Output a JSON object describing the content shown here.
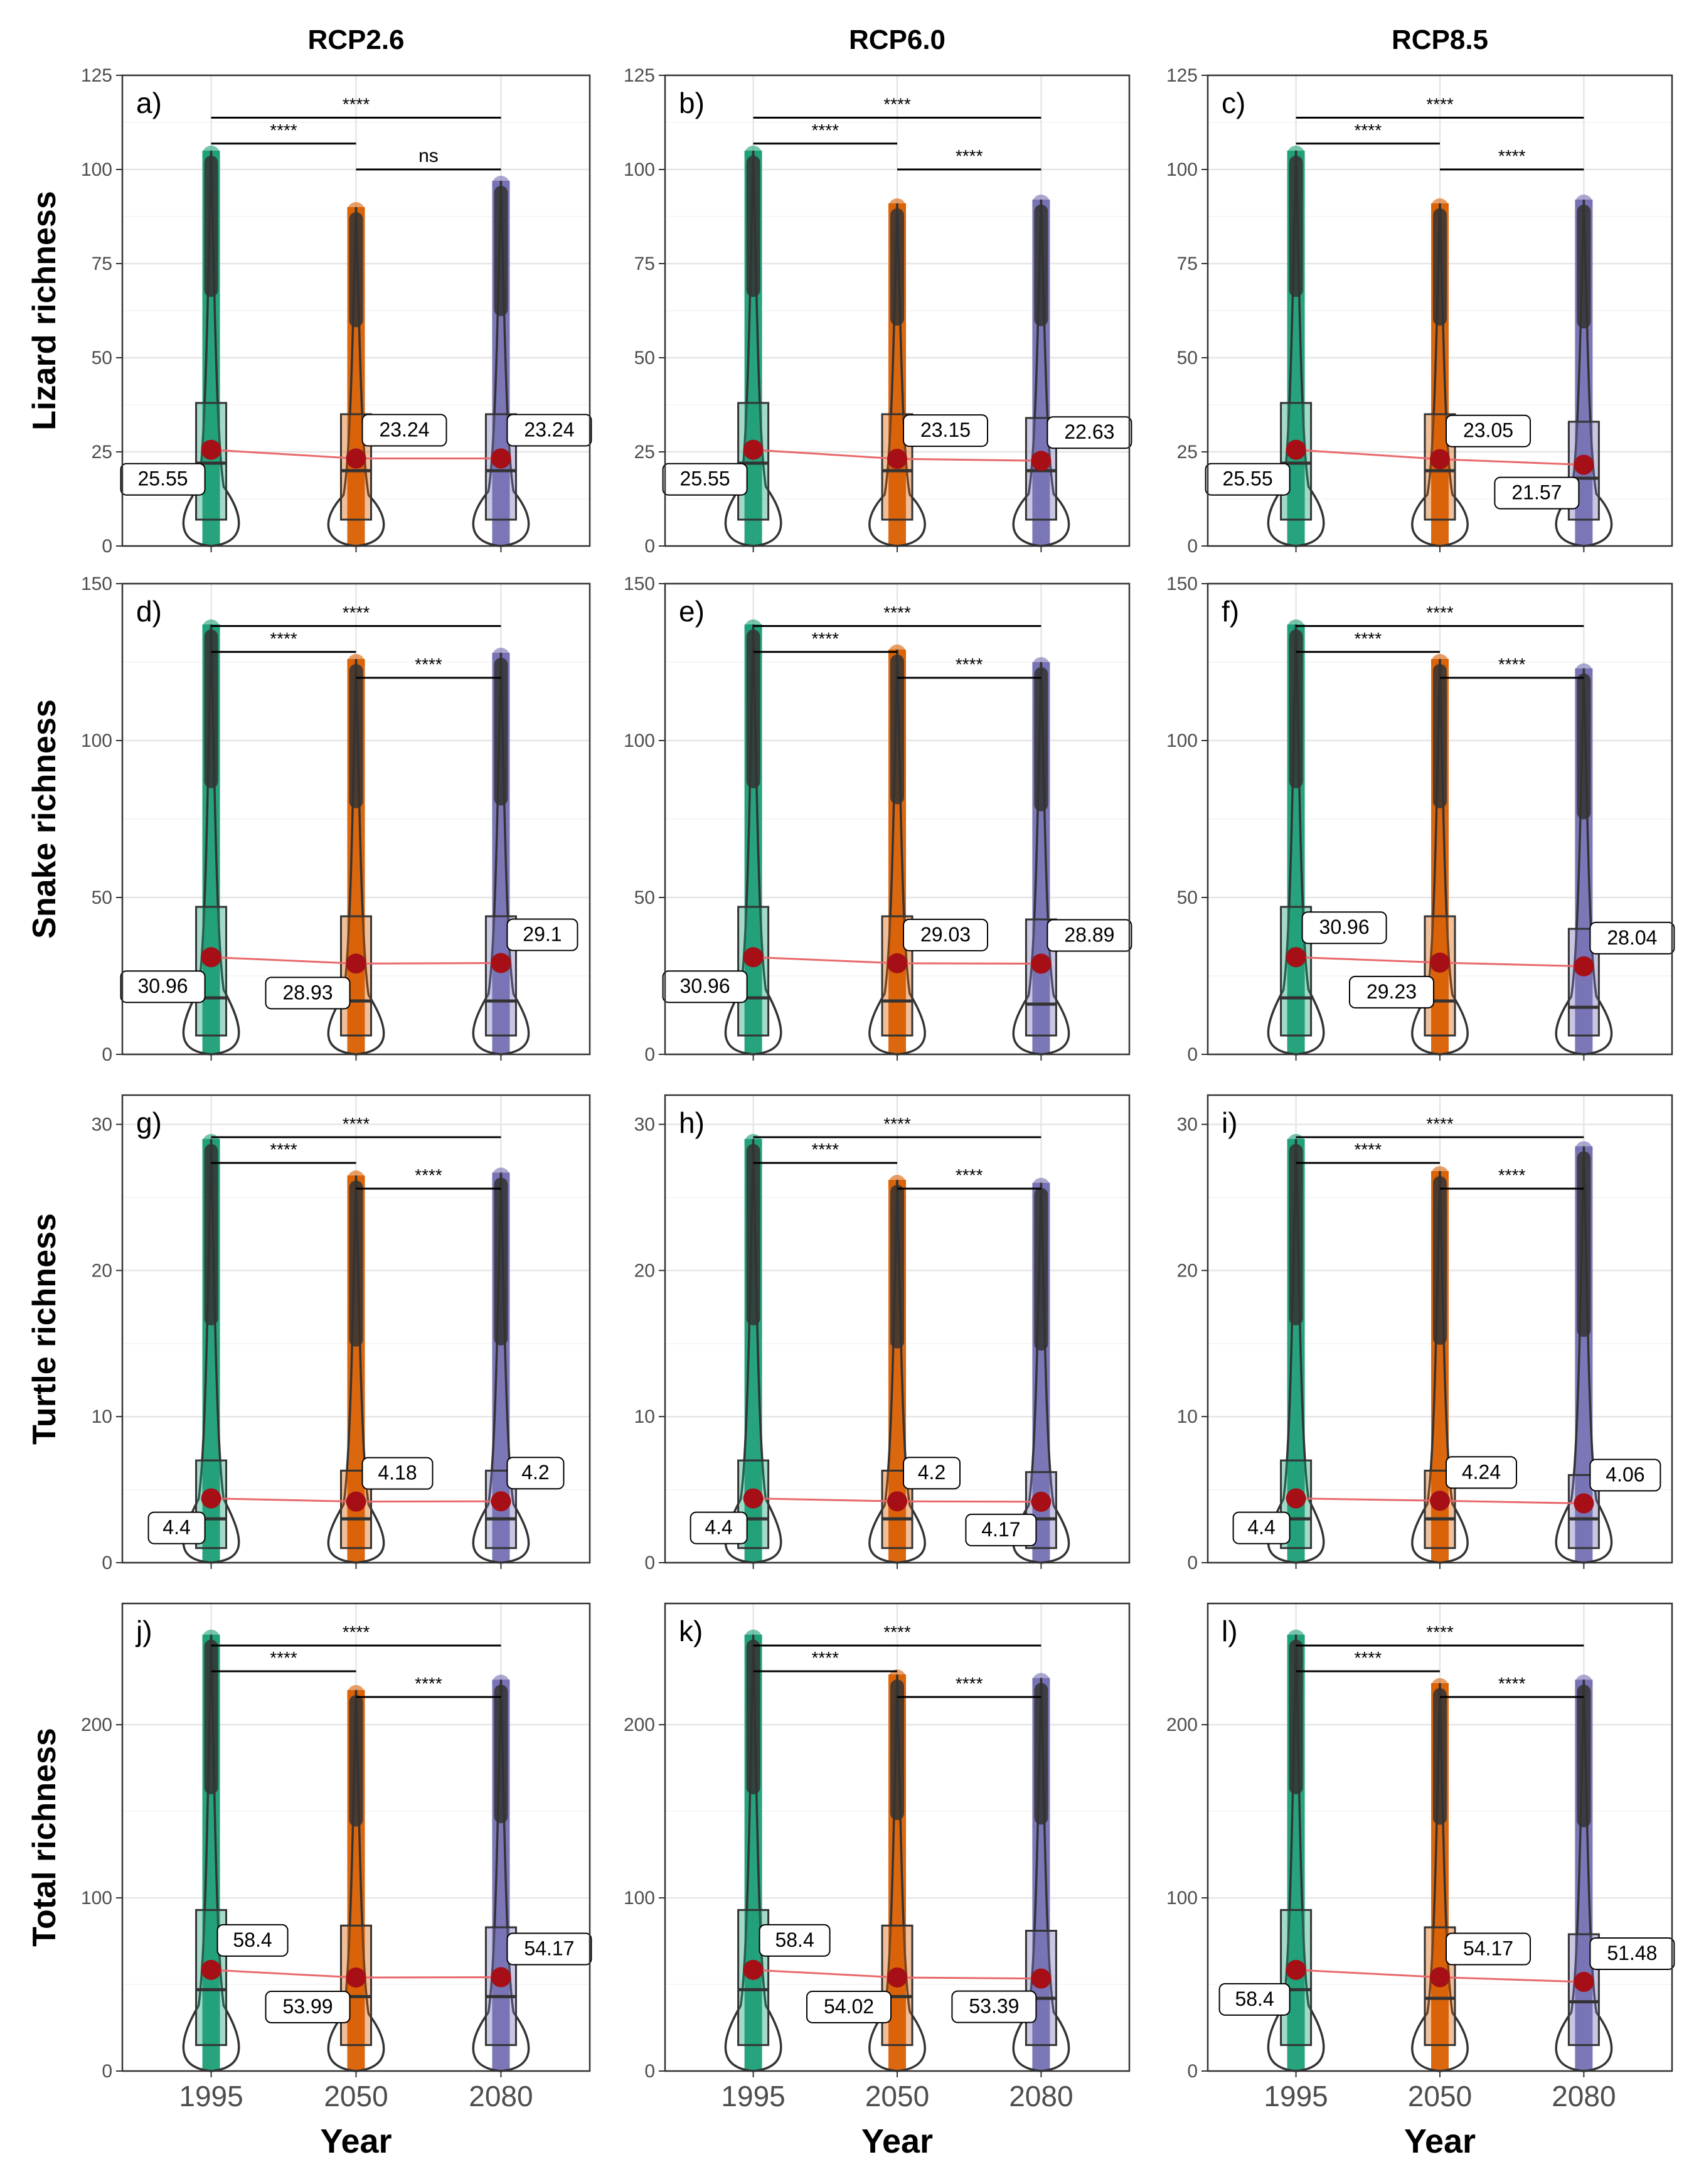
{
  "figure": {
    "columns": [
      "RCP2.6",
      "RCP6.0",
      "RCP8.5"
    ],
    "x_label": "Year",
    "years": [
      "1995",
      "2050",
      "2080"
    ],
    "colors": {
      "1995": "#1b9e77",
      "2050": "#d95f02",
      "2080": "#7570b3",
      "mean_point": "#a50f15",
      "mean_line": "#e8696b"
    },
    "rows": [
      {
        "ylabel": "Lizard richness",
        "ylim": [
          0,
          125
        ],
        "yticks": [
          0,
          25,
          50,
          75,
          100,
          125
        ]
      },
      {
        "ylabel": "Snake richness",
        "ylim": [
          0,
          150
        ],
        "yticks": [
          0,
          50,
          100,
          150
        ]
      },
      {
        "ylabel": "Turtle richness",
        "ylim": [
          0,
          32
        ],
        "yticks": [
          0,
          10,
          20,
          30
        ]
      },
      {
        "ylabel": "Total richness",
        "ylim": [
          0,
          270
        ],
        "yticks": [
          0,
          100,
          200
        ]
      }
    ]
  },
  "chart_data": [
    {
      "type": "box",
      "panel": "a)",
      "row": 0,
      "col": 0,
      "scenario": "RCP2.6",
      "group": "Lizard richness",
      "categories": [
        "1995",
        "2050",
        "2080"
      ],
      "means": [
        25.55,
        23.24,
        23.24
      ],
      "mean_labels": [
        "25.55",
        "23.24",
        "23.24"
      ],
      "label_pos": [
        "below",
        "above",
        "above"
      ],
      "max": [
        105,
        90,
        97
      ],
      "q1": [
        7,
        7,
        7
      ],
      "median": [
        22,
        20,
        20
      ],
      "q3": [
        38,
        35,
        35
      ],
      "sig": [
        {
          "pair": [
            "1995",
            "2050"
          ],
          "label": "****"
        },
        {
          "pair": [
            "2050",
            "2080"
          ],
          "label": "ns"
        },
        {
          "pair": [
            "1995",
            "2080"
          ],
          "label": "****"
        }
      ]
    },
    {
      "type": "box",
      "panel": "b)",
      "row": 0,
      "col": 1,
      "scenario": "RCP6.0",
      "group": "Lizard richness",
      "categories": [
        "1995",
        "2050",
        "2080"
      ],
      "means": [
        25.55,
        23.15,
        22.63
      ],
      "mean_labels": [
        "25.55",
        "23.15",
        "22.63"
      ],
      "label_pos": [
        "below",
        "above",
        "above"
      ],
      "max": [
        105,
        91,
        92
      ],
      "q1": [
        7,
        7,
        7
      ],
      "median": [
        22,
        20,
        20
      ],
      "q3": [
        38,
        35,
        34
      ],
      "sig": [
        {
          "pair": [
            "1995",
            "2050"
          ],
          "label": "****"
        },
        {
          "pair": [
            "2050",
            "2080"
          ],
          "label": "****"
        },
        {
          "pair": [
            "1995",
            "2080"
          ],
          "label": "****"
        }
      ]
    },
    {
      "type": "box",
      "panel": "c)",
      "row": 0,
      "col": 2,
      "scenario": "RCP8.5",
      "group": "Lizard richness",
      "categories": [
        "1995",
        "2050",
        "2080"
      ],
      "means": [
        25.55,
        23.05,
        21.57
      ],
      "mean_labels": [
        "25.55",
        "23.05",
        "21.57"
      ],
      "label_pos": [
        "below",
        "above",
        "below"
      ],
      "max": [
        105,
        91,
        92
      ],
      "q1": [
        7,
        7,
        7
      ],
      "median": [
        22,
        20,
        18
      ],
      "q3": [
        38,
        35,
        33
      ],
      "sig": [
        {
          "pair": [
            "1995",
            "2050"
          ],
          "label": "****"
        },
        {
          "pair": [
            "2050",
            "2080"
          ],
          "label": "****"
        },
        {
          "pair": [
            "1995",
            "2080"
          ],
          "label": "****"
        }
      ]
    },
    {
      "type": "box",
      "panel": "d)",
      "row": 1,
      "col": 0,
      "scenario": "RCP2.6",
      "group": "Snake richness",
      "categories": [
        "1995",
        "2050",
        "2080"
      ],
      "means": [
        30.96,
        28.93,
        29.1
      ],
      "mean_labels": [
        "30.96",
        "28.93",
        "29.1"
      ],
      "label_pos": [
        "below",
        "below",
        "above"
      ],
      "max": [
        137,
        126,
        128
      ],
      "q1": [
        6,
        6,
        6
      ],
      "median": [
        18,
        17,
        17
      ],
      "q3": [
        47,
        44,
        44
      ],
      "sig": [
        {
          "pair": [
            "1995",
            "2050"
          ],
          "label": "****"
        },
        {
          "pair": [
            "2050",
            "2080"
          ],
          "label": "****"
        },
        {
          "pair": [
            "1995",
            "2080"
          ],
          "label": "****"
        }
      ]
    },
    {
      "type": "box",
      "panel": "e)",
      "row": 1,
      "col": 1,
      "scenario": "RCP6.0",
      "group": "Snake richness",
      "categories": [
        "1995",
        "2050",
        "2080"
      ],
      "means": [
        30.96,
        29.03,
        28.89
      ],
      "mean_labels": [
        "30.96",
        "29.03",
        "28.89"
      ],
      "label_pos": [
        "below",
        "above",
        "above"
      ],
      "max": [
        137,
        129,
        125
      ],
      "q1": [
        6,
        6,
        6
      ],
      "median": [
        18,
        17,
        16
      ],
      "q3": [
        47,
        44,
        43
      ],
      "sig": [
        {
          "pair": [
            "1995",
            "2050"
          ],
          "label": "****"
        },
        {
          "pair": [
            "2050",
            "2080"
          ],
          "label": "****"
        },
        {
          "pair": [
            "1995",
            "2080"
          ],
          "label": "****"
        }
      ]
    },
    {
      "type": "box",
      "panel": "f)",
      "row": 1,
      "col": 2,
      "scenario": "RCP8.5",
      "group": "Snake richness",
      "categories": [
        "1995",
        "2050",
        "2080"
      ],
      "means": [
        30.96,
        29.23,
        28.04
      ],
      "mean_labels": [
        "30.96",
        "29.23",
        "28.04"
      ],
      "label_pos": [
        "above",
        "below",
        "above"
      ],
      "max": [
        137,
        126,
        123
      ],
      "q1": [
        6,
        6,
        6
      ],
      "median": [
        18,
        17,
        15
      ],
      "q3": [
        47,
        44,
        40
      ],
      "sig": [
        {
          "pair": [
            "1995",
            "2050"
          ],
          "label": "****"
        },
        {
          "pair": [
            "2050",
            "2080"
          ],
          "label": "****"
        },
        {
          "pair": [
            "1995",
            "2080"
          ],
          "label": "****"
        }
      ]
    },
    {
      "type": "box",
      "panel": "g)",
      "row": 2,
      "col": 0,
      "scenario": "RCP2.6",
      "group": "Turtle richness",
      "categories": [
        "1995",
        "2050",
        "2080"
      ],
      "means": [
        4.4,
        4.18,
        4.2
      ],
      "mean_labels": [
        "4.4",
        "4.18",
        "4.2"
      ],
      "label_pos": [
        "below",
        "above",
        "above"
      ],
      "max": [
        29,
        26.5,
        26.7
      ],
      "q1": [
        1,
        1,
        1
      ],
      "median": [
        3,
        3,
        3
      ],
      "q3": [
        7,
        6.3,
        6.3
      ],
      "sig": [
        {
          "pair": [
            "1995",
            "2050"
          ],
          "label": "****"
        },
        {
          "pair": [
            "2050",
            "2080"
          ],
          "label": "****"
        },
        {
          "pair": [
            "1995",
            "2080"
          ],
          "label": "****"
        }
      ]
    },
    {
      "type": "box",
      "panel": "h)",
      "row": 2,
      "col": 1,
      "scenario": "RCP6.0",
      "group": "Turtle richness",
      "categories": [
        "1995",
        "2050",
        "2080"
      ],
      "means": [
        4.4,
        4.2,
        4.17
      ],
      "mean_labels": [
        "4.4",
        "4.2",
        "4.17"
      ],
      "label_pos": [
        "below",
        "above",
        "below"
      ],
      "max": [
        29,
        26.2,
        26
      ],
      "q1": [
        1,
        1,
        1
      ],
      "median": [
        3,
        3,
        3
      ],
      "q3": [
        7,
        6.3,
        6.2
      ],
      "sig": [
        {
          "pair": [
            "1995",
            "2050"
          ],
          "label": "****"
        },
        {
          "pair": [
            "2050",
            "2080"
          ],
          "label": "****"
        },
        {
          "pair": [
            "1995",
            "2080"
          ],
          "label": "****"
        }
      ]
    },
    {
      "type": "box",
      "panel": "i)",
      "row": 2,
      "col": 2,
      "scenario": "RCP8.5",
      "group": "Turtle richness",
      "categories": [
        "1995",
        "2050",
        "2080"
      ],
      "means": [
        4.4,
        4.24,
        4.06
      ],
      "mean_labels": [
        "4.4",
        "4.24",
        "4.06"
      ],
      "label_pos": [
        "below",
        "above",
        "above"
      ],
      "max": [
        29,
        26.8,
        28.5
      ],
      "q1": [
        1,
        1,
        1
      ],
      "median": [
        3,
        3,
        3
      ],
      "q3": [
        7,
        6.3,
        6
      ],
      "sig": [
        {
          "pair": [
            "1995",
            "2050"
          ],
          "label": "****"
        },
        {
          "pair": [
            "2050",
            "2080"
          ],
          "label": "****"
        },
        {
          "pair": [
            "1995",
            "2080"
          ],
          "label": "****"
        }
      ]
    },
    {
      "type": "box",
      "panel": "j)",
      "row": 3,
      "col": 0,
      "scenario": "RCP2.6",
      "group": "Total richness",
      "categories": [
        "1995",
        "2050",
        "2080"
      ],
      "means": [
        58.4,
        53.99,
        54.17
      ],
      "mean_labels": [
        "58.4",
        "53.99",
        "54.17"
      ],
      "label_pos": [
        "above",
        "below",
        "above"
      ],
      "max": [
        252,
        220,
        226
      ],
      "q1": [
        15,
        15,
        15
      ],
      "median": [
        47,
        43,
        43
      ],
      "q3": [
        93,
        84,
        83
      ],
      "sig": [
        {
          "pair": [
            "1995",
            "2050"
          ],
          "label": "****"
        },
        {
          "pair": [
            "2050",
            "2080"
          ],
          "label": "****"
        },
        {
          "pair": [
            "1995",
            "2080"
          ],
          "label": "****"
        }
      ]
    },
    {
      "type": "box",
      "panel": "k)",
      "row": 3,
      "col": 1,
      "scenario": "RCP6.0",
      "group": "Total richness",
      "categories": [
        "1995",
        "2050",
        "2080"
      ],
      "means": [
        58.4,
        54.02,
        53.39
      ],
      "mean_labels": [
        "58.4",
        "54.02",
        "53.39"
      ],
      "label_pos": [
        "above",
        "below",
        "below"
      ],
      "max": [
        252,
        229,
        227
      ],
      "q1": [
        15,
        15,
        15
      ],
      "median": [
        47,
        43,
        42
      ],
      "q3": [
        93,
        84,
        81
      ],
      "sig": [
        {
          "pair": [
            "1995",
            "2050"
          ],
          "label": "****"
        },
        {
          "pair": [
            "2050",
            "2080"
          ],
          "label": "****"
        },
        {
          "pair": [
            "1995",
            "2080"
          ],
          "label": "****"
        }
      ]
    },
    {
      "type": "box",
      "panel": "l)",
      "row": 3,
      "col": 2,
      "scenario": "RCP8.5",
      "group": "Total richness",
      "categories": [
        "1995",
        "2050",
        "2080"
      ],
      "means": [
        58.4,
        54.17,
        51.48
      ],
      "mean_labels": [
        "58.4",
        "54.17",
        "51.48"
      ],
      "label_pos": [
        "below",
        "above",
        "above"
      ],
      "max": [
        252,
        224,
        226
      ],
      "q1": [
        15,
        15,
        15
      ],
      "median": [
        47,
        42,
        40
      ],
      "q3": [
        93,
        83,
        79
      ],
      "sig": [
        {
          "pair": [
            "1995",
            "2050"
          ],
          "label": "****"
        },
        {
          "pair": [
            "2050",
            "2080"
          ],
          "label": "****"
        },
        {
          "pair": [
            "1995",
            "2080"
          ],
          "label": "****"
        }
      ]
    }
  ]
}
